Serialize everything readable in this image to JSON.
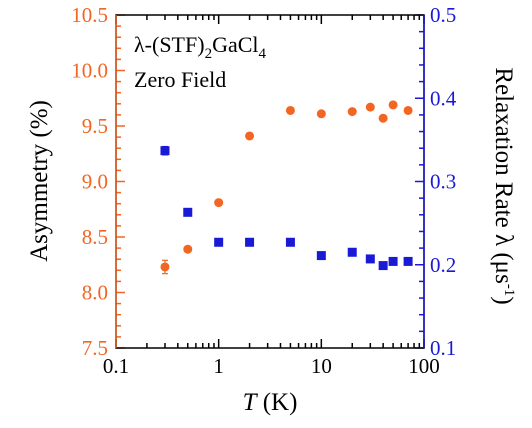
{
  "chart_data": {
    "type": "scatter",
    "annotations": {
      "compound_main": "λ-(STF)",
      "compound_sub1": "2",
      "compound_mid": "GaCl",
      "compound_sub2": "4",
      "condition": "Zero Field"
    },
    "x_axis": {
      "label_italic": "T",
      "label_unit": " (K)",
      "scale": "log",
      "range": [
        0.1,
        100
      ],
      "ticks": [
        {
          "value": 0.1,
          "label": "0.1"
        },
        {
          "value": 1,
          "label": "1"
        },
        {
          "value": 10,
          "label": "10"
        },
        {
          "value": 100,
          "label": "100"
        }
      ]
    },
    "y_left": {
      "label": "Asymmetry (%)",
      "range": [
        7.5,
        10.5
      ],
      "color": "#f26522",
      "ticks": [
        {
          "value": 7.5,
          "label": "7.5"
        },
        {
          "value": 8.0,
          "label": "8.0"
        },
        {
          "value": 8.5,
          "label": "8.5"
        },
        {
          "value": 9.0,
          "label": "9.0"
        },
        {
          "value": 9.5,
          "label": "9.5"
        },
        {
          "value": 10.0,
          "label": "10.0"
        },
        {
          "value": 10.5,
          "label": "10.5"
        }
      ]
    },
    "y_right": {
      "label_main": "Relaxation Rate λ (μs",
      "label_sup": "-1",
      "label_close": ")",
      "range": [
        0.1,
        0.5
      ],
      "color": "#1a1ad6",
      "ticks": [
        {
          "value": 0.1,
          "label": "0.1"
        },
        {
          "value": 0.2,
          "label": "0.2"
        },
        {
          "value": 0.3,
          "label": "0.3"
        },
        {
          "value": 0.4,
          "label": "0.4"
        },
        {
          "value": 0.5,
          "label": "0.5"
        }
      ]
    },
    "series": [
      {
        "axis": "left",
        "marker": "circle",
        "color": "#f26522",
        "points": [
          {
            "x": 0.3,
            "y": 8.23,
            "err": 0.06
          },
          {
            "x": 0.5,
            "y": 8.39
          },
          {
            "x": 1,
            "y": 8.81
          },
          {
            "x": 2,
            "y": 9.41
          },
          {
            "x": 5,
            "y": 9.64
          },
          {
            "x": 10,
            "y": 9.61
          },
          {
            "x": 20,
            "y": 9.63
          },
          {
            "x": 30,
            "y": 9.67
          },
          {
            "x": 40,
            "y": 9.57
          },
          {
            "x": 50,
            "y": 9.69
          },
          {
            "x": 70,
            "y": 9.64
          }
        ]
      },
      {
        "axis": "right",
        "marker": "square",
        "color": "#1a1ad6",
        "points": [
          {
            "x": 0.3,
            "y": 0.337,
            "err": 0.005
          },
          {
            "x": 0.5,
            "y": 0.263
          },
          {
            "x": 1,
            "y": 0.227
          },
          {
            "x": 2,
            "y": 0.227
          },
          {
            "x": 5,
            "y": 0.227
          },
          {
            "x": 10,
            "y": 0.211
          },
          {
            "x": 20,
            "y": 0.215
          },
          {
            "x": 30,
            "y": 0.207
          },
          {
            "x": 40,
            "y": 0.199
          },
          {
            "x": 50,
            "y": 0.204
          },
          {
            "x": 70,
            "y": 0.204
          }
        ]
      }
    ],
    "grid": false,
    "legend": "none"
  }
}
